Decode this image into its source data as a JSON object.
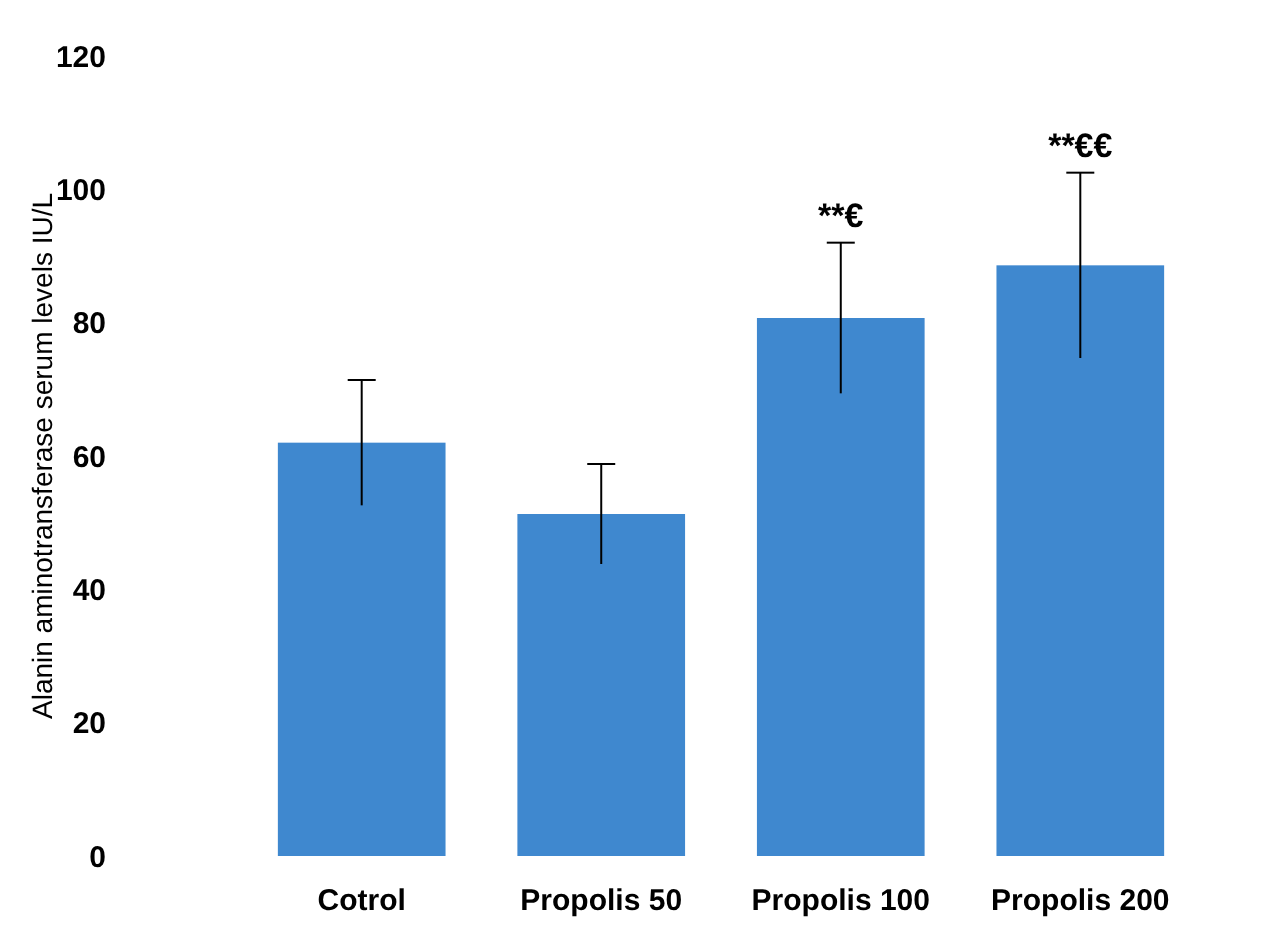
{
  "chart_data": {
    "type": "bar",
    "ylabel": "Alanin aminotransferase serum levels IU/L",
    "categories": [
      "Cotrol",
      "Propolis 50",
      "Propolis 100",
      "Propolis 200"
    ],
    "values": [
      62,
      51.3,
      80.7,
      88.6
    ],
    "errors": [
      9.4,
      7.5,
      11.3,
      13.9
    ],
    "color": "#3f88cf",
    "ylim": [
      0,
      120
    ],
    "yticks": [
      0,
      20,
      40,
      60,
      80,
      100,
      120
    ],
    "annotations": [
      {
        "text": "**€",
        "x": "Propolis 100",
        "y": 92
      },
      {
        "text": "**€€",
        "x": "Propolis 200",
        "y": 102.5
      }
    ]
  }
}
